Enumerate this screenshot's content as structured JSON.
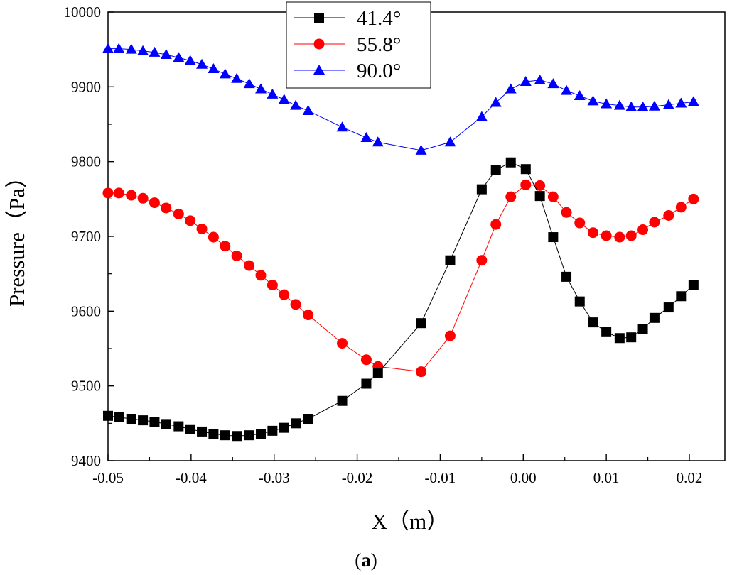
{
  "chart_data": {
    "type": "line",
    "title": "",
    "xlabel": "X（m）",
    "ylabel": "Pressure（Pa）",
    "xlim": [
      -0.05,
      0.022
    ],
    "ylim": [
      9400,
      10000
    ],
    "xticks": [
      -0.05,
      -0.04,
      -0.03,
      -0.02,
      -0.01,
      0.0,
      0.01,
      0.02
    ],
    "xtick_labels": [
      "-0.05",
      "-0.04",
      "-0.03",
      "-0.02",
      "-0.01",
      "0.00",
      "0.01",
      "0.02"
    ],
    "yticks": [
      9400,
      9500,
      9600,
      9700,
      9800,
      9900,
      10000
    ],
    "ytick_labels": [
      "9400",
      "9500",
      "9600",
      "9700",
      "9800",
      "9900",
      "10000"
    ],
    "legend_position": "top-center",
    "caption": {
      "open": "(",
      "letter": "a",
      "close": ")"
    },
    "series": [
      {
        "name": "41.4°",
        "color": "#000000",
        "marker": "square",
        "x": [
          -0.05,
          -0.0487,
          -0.0472,
          -0.0458,
          -0.0444,
          -0.043,
          -0.0415,
          -0.0401,
          -0.0387,
          -0.0373,
          -0.0359,
          -0.0345,
          -0.033,
          -0.0316,
          -0.0302,
          -0.0288,
          -0.0274,
          -0.0259,
          -0.0218,
          -0.0189,
          -0.0175,
          -0.0123,
          -0.0088,
          -0.005,
          -0.0033,
          -0.0015,
          0.0003,
          0.002,
          0.0036,
          0.0052,
          0.0068,
          0.0084,
          0.01,
          0.0116,
          0.013,
          0.0144,
          0.0158,
          0.0175,
          0.019,
          0.0205
        ],
        "y": [
          9460,
          9458,
          9456,
          9454,
          9452,
          9449,
          9446,
          9442,
          9439,
          9436,
          9434,
          9433,
          9434,
          9436,
          9440,
          9444,
          9450,
          9456,
          9480,
          9503,
          9517,
          9584,
          9668,
          9763,
          9789,
          9799,
          9790,
          9754,
          9699,
          9646,
          9613,
          9585,
          9572,
          9564,
          9565,
          9576,
          9591,
          9605,
          9620,
          9635
        ]
      },
      {
        "name": "55.8°",
        "color": "#ff0000",
        "marker": "circle",
        "x": [
          -0.05,
          -0.0487,
          -0.0472,
          -0.0458,
          -0.0444,
          -0.043,
          -0.0415,
          -0.0401,
          -0.0387,
          -0.0373,
          -0.0359,
          -0.0345,
          -0.033,
          -0.0316,
          -0.0302,
          -0.0288,
          -0.0274,
          -0.0259,
          -0.0218,
          -0.0189,
          -0.0175,
          -0.0123,
          -0.0088,
          -0.005,
          -0.0033,
          -0.0015,
          0.0003,
          0.002,
          0.0036,
          0.0052,
          0.0068,
          0.0084,
          0.01,
          0.0116,
          0.013,
          0.0144,
          0.0158,
          0.0175,
          0.019,
          0.0205
        ],
        "y": [
          9758,
          9758,
          9755,
          9751,
          9745,
          9738,
          9730,
          9721,
          9710,
          9699,
          9687,
          9674,
          9661,
          9648,
          9635,
          9622,
          9609,
          9595,
          9557,
          9535,
          9526,
          9519,
          9567,
          9668,
          9716,
          9753,
          9769,
          9768,
          9753,
          9732,
          9718,
          9705,
          9701,
          9699,
          9701,
          9709,
          9719,
          9728,
          9739,
          9750
        ]
      },
      {
        "name": "90.0°",
        "color": "#0000ff",
        "marker": "triangle",
        "x": [
          -0.05,
          -0.0487,
          -0.0472,
          -0.0458,
          -0.0444,
          -0.043,
          -0.0415,
          -0.0401,
          -0.0387,
          -0.0373,
          -0.0359,
          -0.0345,
          -0.033,
          -0.0316,
          -0.0302,
          -0.0288,
          -0.0274,
          -0.0259,
          -0.0218,
          -0.0189,
          -0.0175,
          -0.0123,
          -0.0088,
          -0.005,
          -0.0033,
          -0.0015,
          0.0003,
          0.002,
          0.0036,
          0.0052,
          0.0068,
          0.0084,
          0.01,
          0.0116,
          0.013,
          0.0144,
          0.0158,
          0.0175,
          0.019,
          0.0205
        ],
        "y": [
          9951,
          9951,
          9950,
          9948,
          9946,
          9943,
          9939,
          9935,
          9930,
          9924,
          9917,
          9911,
          9904,
          9897,
          9890,
          9883,
          9875,
          9868,
          9846,
          9832,
          9826,
          9815,
          9826,
          9860,
          9879,
          9897,
          9907,
          9909,
          9904,
          9895,
          9888,
          9881,
          9877,
          9875,
          9873,
          9873,
          9874,
          9876,
          9878,
          9880
        ]
      }
    ]
  }
}
